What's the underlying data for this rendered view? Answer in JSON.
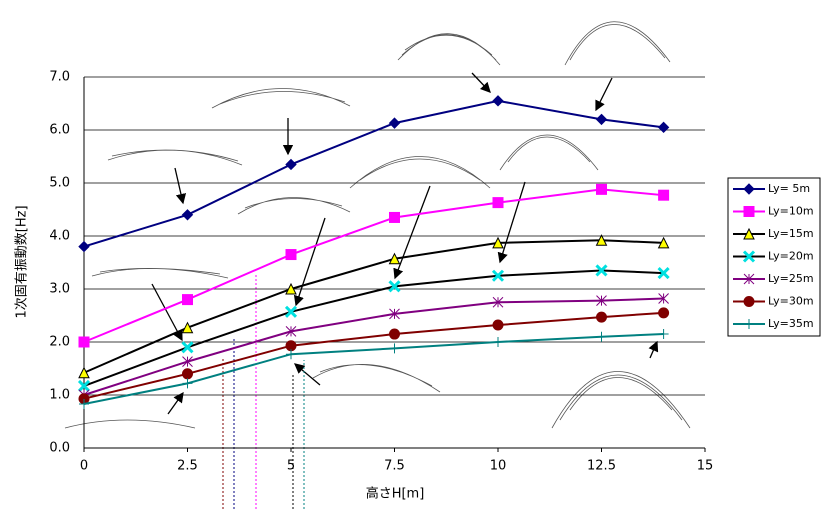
{
  "chart_data": {
    "type": "line",
    "x_label": "高さH[m]",
    "y_label": "1次固有振動数[Hz]",
    "xlim": [
      0,
      15
    ],
    "xticks": [
      0,
      2.5,
      5,
      7.5,
      10,
      12.5,
      15
    ],
    "ylim": [
      0,
      7
    ],
    "yticks": [
      {
        "value": 0,
        "label": "0.0"
      },
      {
        "value": 1,
        "label": "1.0"
      },
      {
        "value": 2,
        "label": "2.0"
      },
      {
        "value": 3,
        "label": "3.0"
      },
      {
        "value": 4,
        "label": "4.0"
      },
      {
        "value": 5,
        "label": "5.0"
      },
      {
        "value": 6,
        "label": "6.0"
      },
      {
        "value": 7,
        "label": "7.0"
      }
    ],
    "grid": true,
    "legend": "right",
    "x": [
      0,
      2.5,
      5,
      7.5,
      10,
      12.5,
      14
    ],
    "series": [
      {
        "name": "Ly= 5m",
        "color": "#000080",
        "marker": "diamond",
        "marker_color": "#000080",
        "values": [
          3.8,
          4.4,
          5.35,
          6.13,
          6.55,
          6.2,
          6.05
        ]
      },
      {
        "name": "Ly=10m",
        "color": "#ff00ff",
        "marker": "square",
        "marker_color": "#ff00ff",
        "values": [
          2.0,
          2.8,
          3.65,
          4.35,
          4.63,
          4.88,
          4.77
        ]
      },
      {
        "name": "Ly=15m",
        "color": "#000000",
        "marker": "triangle",
        "marker_color": "#ffff00",
        "values": [
          1.42,
          2.27,
          3.0,
          3.57,
          3.87,
          3.92,
          3.87
        ]
      },
      {
        "name": "Ly=20m",
        "color": "#000000",
        "marker": "x",
        "marker_color": "#00e0e0",
        "values": [
          1.17,
          1.9,
          2.57,
          3.05,
          3.25,
          3.35,
          3.3
        ]
      },
      {
        "name": "Ly=25m",
        "color": "#800080",
        "marker": "star",
        "marker_color": "#800080",
        "values": [
          1.0,
          1.63,
          2.2,
          2.53,
          2.75,
          2.78,
          2.82
        ]
      },
      {
        "name": "Ly=30m",
        "color": "#800000",
        "marker": "circle",
        "marker_color": "#800000",
        "values": [
          0.93,
          1.4,
          1.93,
          2.15,
          2.32,
          2.47,
          2.55
        ]
      },
      {
        "name": "Ly=35m",
        "color": "#008080",
        "marker": "plus",
        "marker_color": "#008080",
        "values": [
          0.83,
          1.22,
          1.77,
          1.88,
          2.0,
          2.1,
          2.15
        ]
      }
    ]
  }
}
